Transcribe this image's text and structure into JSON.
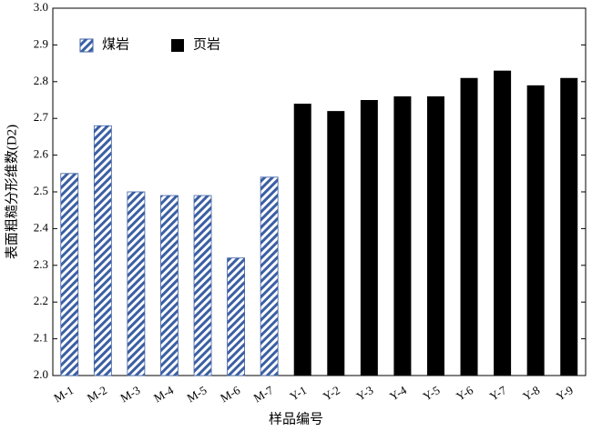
{
  "chart_data": {
    "type": "bar",
    "x_label": "样品编号",
    "y_label": "表面粗糙分形维数(D2)",
    "categories": [
      "M-1",
      "M-2",
      "M-3",
      "M-4",
      "M-5",
      "M-6",
      "M-7",
      "Y-1",
      "Y-2",
      "Y-3",
      "Y-4",
      "Y-5",
      "Y-6",
      "Y-7",
      "Y-8",
      "Y-9"
    ],
    "series": [
      {
        "name": "煤岩",
        "color": "#3b5fa3",
        "hatch": true,
        "values": [
          2.55,
          2.68,
          2.5,
          2.49,
          2.49,
          2.32,
          2.54,
          null,
          null,
          null,
          null,
          null,
          null,
          null,
          null,
          null
        ]
      },
      {
        "name": "页岩",
        "color": "#000000",
        "hatch": false,
        "values": [
          null,
          null,
          null,
          null,
          null,
          null,
          null,
          2.74,
          2.72,
          2.75,
          2.76,
          2.76,
          2.81,
          2.83,
          2.79,
          2.81
        ]
      }
    ],
    "ylim": [
      2.0,
      3.0
    ],
    "yticks": [
      {
        "value": 2.0,
        "label": "2.0"
      },
      2.1,
      2.2,
      2.3,
      2.4,
      2.5,
      2.6,
      2.7,
      2.8,
      2.9,
      {
        "value": 3.0,
        "label": "3.0"
      }
    ],
    "legend": "upper left",
    "grid": false
  }
}
